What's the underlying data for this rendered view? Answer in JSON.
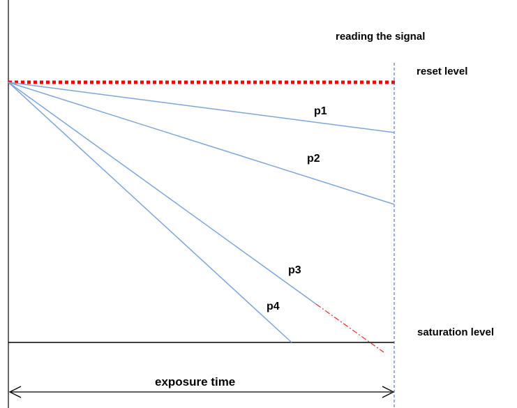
{
  "labels": {
    "reading_signal": "reading the signal",
    "reset_level": "reset level",
    "saturation_level": "saturation level",
    "exposure_time": "exposure time",
    "p1": "p1",
    "p2": "p2",
    "p3": "p3",
    "p4": "p4"
  },
  "colors": {
    "reset_line": "#ff0000",
    "pixel_line": "#7ea6d8",
    "extrapolation": "#e53935",
    "readout_line": "#3a5fbf",
    "axes": "#000000"
  }
}
